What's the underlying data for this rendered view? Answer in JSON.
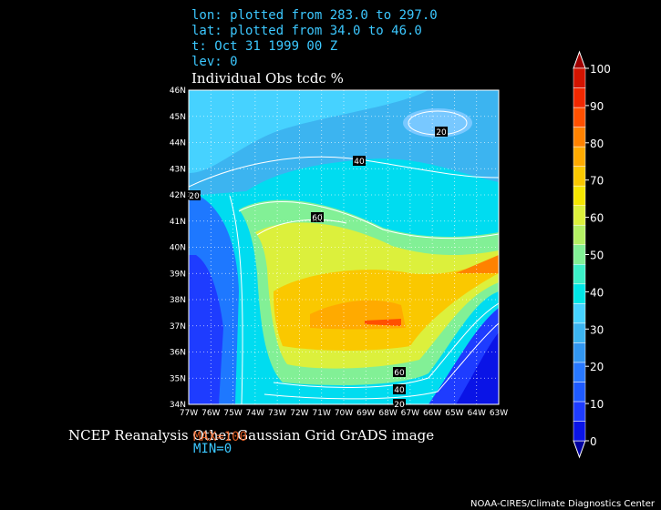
{
  "header": {
    "lines": [
      "lon: plotted from 283.0 to 297.0",
      "lat: plotted from 34.0 to 46.0",
      "t: Oct 31 1999 00 Z",
      "lev: 0"
    ]
  },
  "title": "Individual Obs tcdc %",
  "lat_ticks": [
    "34N",
    "35N",
    "36N",
    "37N",
    "38N",
    "39N",
    "40N",
    "41N",
    "42N",
    "43N",
    "44N",
    "45N",
    "46N"
  ],
  "lon_ticks": [
    "77W",
    "76W",
    "75W",
    "74W",
    "73W",
    "72W",
    "71W",
    "70W",
    "69W",
    "68W",
    "67W",
    "66W",
    "65W",
    "64W",
    "63W"
  ],
  "contour_labels": [
    "20",
    "40",
    "60",
    "20",
    "60",
    "40",
    "20"
  ],
  "colorbar": {
    "ticks": [
      0,
      10,
      20,
      30,
      40,
      50,
      60,
      70,
      80,
      90,
      100
    ],
    "colors": [
      "#0000a0",
      "#0a14e6",
      "#1e3cff",
      "#1e5aff",
      "#2878ff",
      "#3296f0",
      "#3cb4f0",
      "#46d2ff",
      "#00e6e6",
      "#3cf0c8",
      "#82f096",
      "#b4f064",
      "#dcf03c",
      "#f5e600",
      "#fac800",
      "#ffaa00",
      "#ff8200",
      "#ff5000",
      "#f02800",
      "#d21400",
      "#a00000"
    ]
  },
  "footer": {
    "caption": "NCEP Reanalysis Other Gaussian Grid GrADS image",
    "max": "MAX=100",
    "min": "MIN=0",
    "credit": "NOAA-CIRES/Climate Diagnostics Center"
  }
}
